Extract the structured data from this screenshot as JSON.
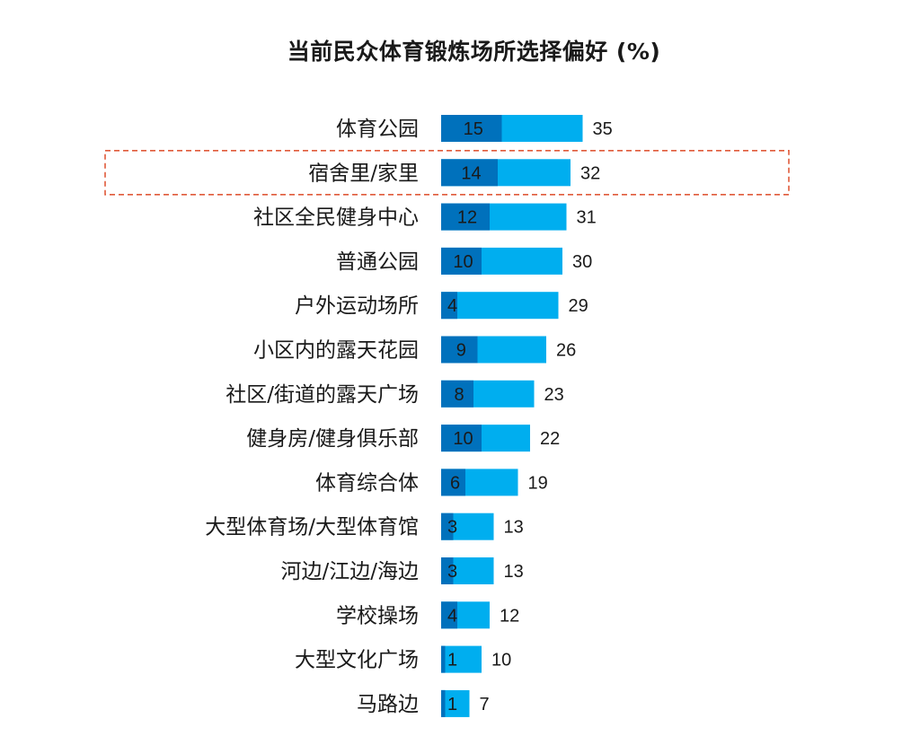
{
  "title": "当前民众体育锻炼场所选择偏好 (%)",
  "colors": {
    "total_bar": "#00aeef",
    "inner_bar": "#0071bc",
    "highlight_border": "#e05a3a",
    "text": "#1a1a1a"
  },
  "chart_data": {
    "type": "bar",
    "orientation": "horizontal",
    "stacked_overlay": true,
    "title": "当前民众体育锻炼场所选择偏好 (%)",
    "xlabel": "",
    "ylabel": "",
    "xlim": [
      0,
      35
    ],
    "grid": false,
    "legend": "none",
    "categories": [
      "体育公园",
      "宿舍里/家里",
      "社区全民健身中心",
      "普通公园",
      "户外运动场所",
      "小区内的露天花园",
      "社区/街道的露天广场",
      "健身房/健身俱乐部",
      "体育综合体",
      "大型体育场/大型体育馆",
      "河边/江边/海边",
      "学校操场",
      "大型文化广场",
      "马路边"
    ],
    "series": [
      {
        "values": [
          35,
          32,
          31,
          30,
          29,
          26,
          23,
          22,
          19,
          13,
          13,
          12,
          10,
          7
        ]
      },
      {
        "values": [
          15,
          14,
          12,
          10,
          4,
          9,
          8,
          10,
          6,
          3,
          3,
          4,
          1,
          1
        ]
      }
    ],
    "highlighted_category": "宿舍里/家里"
  }
}
